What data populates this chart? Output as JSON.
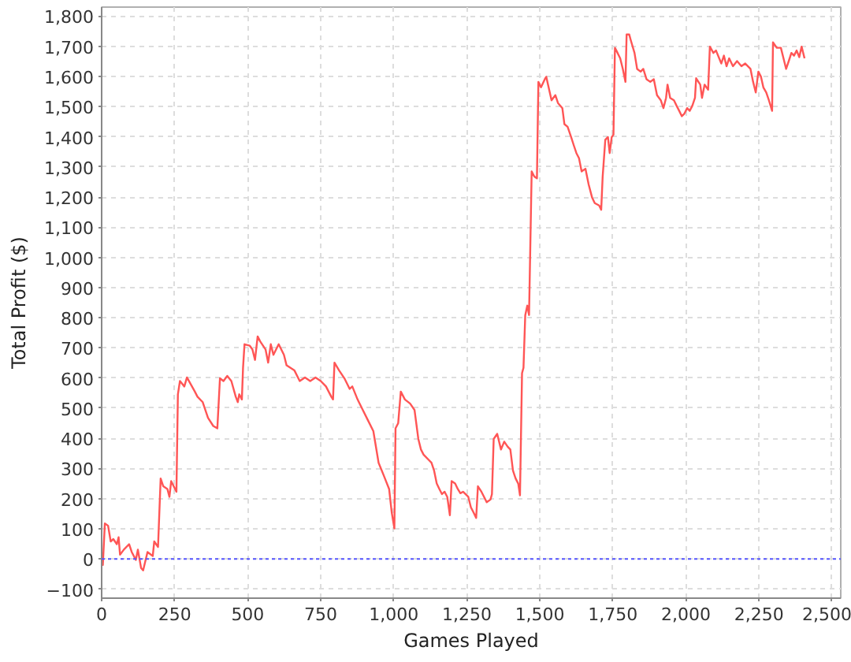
{
  "chart_data": {
    "type": "line",
    "xlabel": "Games Played",
    "ylabel": "Total Profit ($)",
    "xlim": [
      0,
      2530
    ],
    "ylim": [
      -130,
      1830
    ],
    "xticks": [
      0,
      250,
      500,
      750,
      {
        "value": 1000,
        "label": "1,000"
      },
      {
        "value": 1250,
        "label": "1,250"
      },
      {
        "value": 1500,
        "label": "1,500"
      },
      {
        "value": 1750,
        "label": "1,750"
      },
      {
        "value": 2000,
        "label": "2,000"
      },
      {
        "value": 2250,
        "label": "2,250"
      },
      {
        "value": 2500,
        "label": "2,500"
      }
    ],
    "yticks": [
      -100,
      0,
      100,
      200,
      300,
      400,
      500,
      600,
      700,
      800,
      900,
      {
        "value": 1000,
        "label": "1,000"
      },
      {
        "value": 1100,
        "label": "1,100"
      },
      {
        "value": 1200,
        "label": "1,200"
      },
      {
        "value": 1300,
        "label": "1,300"
      },
      {
        "value": 1400,
        "label": "1,400"
      },
      {
        "value": 1500,
        "label": "1,500"
      },
      {
        "value": 1600,
        "label": "1,600"
      },
      {
        "value": 1700,
        "label": "1,700"
      },
      {
        "value": 1800,
        "label": "1,800"
      }
    ],
    "grid": true,
    "x": [
      0,
      4,
      11,
      22,
      31,
      40,
      52,
      58,
      63,
      76,
      94,
      103,
      117,
      124,
      135,
      142,
      157,
      175,
      180,
      193,
      202,
      211,
      225,
      232,
      238,
      256,
      261,
      268,
      283,
      292,
      304,
      319,
      328,
      346,
      364,
      382,
      396,
      405,
      417,
      430,
      444,
      459,
      466,
      471,
      480,
      484,
      489,
      507,
      516,
      525,
      534,
      543,
      561,
      570,
      579,
      588,
      606,
      624,
      633,
      660,
      678,
      696,
      714,
      732,
      750,
      768,
      786,
      792,
      797,
      813,
      831,
      849,
      858,
      876,
      894,
      912,
      930,
      948,
      966,
      984,
      993,
      1002,
      1006,
      1015,
      1024,
      1038,
      1056,
      1071,
      1084,
      1093,
      1102,
      1120,
      1129,
      1138,
      1147,
      1156,
      1165,
      1174,
      1183,
      1192,
      1198,
      1210,
      1219,
      1228,
      1237,
      1255,
      1264,
      1273,
      1282,
      1288,
      1300,
      1309,
      1318,
      1331,
      1336,
      1342,
      1354,
      1367,
      1378,
      1390,
      1399,
      1408,
      1417,
      1426,
      1432,
      1439,
      1444,
      1450,
      1457,
      1463,
      1472,
      1481,
      1490,
      1495,
      1504,
      1517,
      1522,
      1530,
      1540,
      1553,
      1562,
      1577,
      1584,
      1595,
      1607,
      1616,
      1625,
      1634,
      1643,
      1656,
      1667,
      1679,
      1688,
      1703,
      1710,
      1715,
      1724,
      1733,
      1739,
      1746,
      1752,
      1757,
      1766,
      1775,
      1784,
      1793,
      1797,
      1806,
      1811,
      1824,
      1833,
      1845,
      1854,
      1865,
      1878,
      1890,
      1901,
      1914,
      1923,
      1932,
      1937,
      1946,
      1959,
      1968,
      1977,
      1986,
      1995,
      2004,
      2013,
      2022,
      2031,
      2035,
      2049,
      2055,
      2064,
      2076,
      2082,
      2094,
      2103,
      2121,
      2130,
      2139,
      2148,
      2161,
      2175,
      2190,
      2203,
      2221,
      2230,
      2239,
      2248,
      2257,
      2265,
      2275,
      2284,
      2295,
      2298,
      2311,
      2325,
      2334,
      2343,
      2352,
      2361,
      2370,
      2379,
      2388,
      2396,
      2406
    ],
    "series": [
      {
        "color": "#ff5555",
        "values": [
          0,
          -20,
          118,
          110,
          58,
          66,
          49,
          72,
          14,
          31,
          49,
          23,
          -3,
          31,
          -30,
          -38,
          23,
          10,
          58,
          40,
          267,
          241,
          232,
          206,
          258,
          223,
          546,
          590,
          572,
          602,
          581,
          555,
          538,
          520,
          468,
          441,
          433,
          599,
          590,
          607,
          590,
          538,
          520,
          546,
          529,
          634,
          712,
          707,
          695,
          660,
          738,
          721,
          695,
          651,
          712,
          677,
          712,
          677,
          642,
          625,
          590,
          602,
          590,
          602,
          590,
          572,
          538,
          529,
          651,
          625,
          599,
          564,
          572,
          529,
          494,
          459,
          424,
          319,
          276,
          232,
          154,
          101,
          433,
          450,
          555,
          529,
          515,
          494,
          398,
          363,
          346,
          328,
          319,
          293,
          250,
          232,
          215,
          223,
          206,
          145,
          258,
          250,
          232,
          218,
          223,
          206,
          171,
          154,
          136,
          241,
          223,
          206,
          188,
          197,
          215,
          398,
          415,
          363,
          389,
          372,
          363,
          293,
          267,
          250,
          211,
          616,
          634,
          808,
          840,
          809,
          1285,
          1268,
          1262,
          1582,
          1564,
          1591,
          1599,
          1564,
          1521,
          1538,
          1512,
          1495,
          1442,
          1433,
          1399,
          1372,
          1346,
          1329,
          1285,
          1294,
          1242,
          1198,
          1180,
          1172,
          1158,
          1268,
          1390,
          1399,
          1346,
          1399,
          1407,
          1695,
          1678,
          1660,
          1625,
          1582,
          1739,
          1739,
          1721,
          1678,
          1625,
          1616,
          1625,
          1591,
          1582,
          1591,
          1538,
          1521,
          1495,
          1529,
          1573,
          1529,
          1521,
          1503,
          1486,
          1468,
          1477,
          1495,
          1486,
          1503,
          1529,
          1594,
          1573,
          1529,
          1573,
          1556,
          1699,
          1678,
          1686,
          1643,
          1669,
          1634,
          1660,
          1634,
          1651,
          1634,
          1643,
          1625,
          1582,
          1547,
          1616,
          1599,
          1564,
          1547,
          1521,
          1486,
          1713,
          1695,
          1695,
          1660,
          1625,
          1651,
          1678,
          1669,
          1686,
          1664,
          1699,
          1660
        ]
      }
    ],
    "ref_lines": [
      {
        "axis": "y",
        "value": 0,
        "color": "#5555ff",
        "line_style": "dotted"
      }
    ]
  }
}
